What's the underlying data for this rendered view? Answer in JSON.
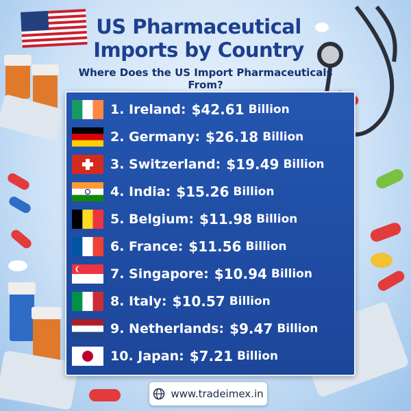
{
  "header": {
    "title": [
      "US Pharmaceutical",
      "Imports by Country"
    ],
    "subtitle": "Where Does the US Import Pharmaceuticals From?"
  },
  "items": [
    {
      "label": "1. Ireland:",
      "amount": "$42.61",
      "unit": "Billion"
    },
    {
      "label": "2. Germany:",
      "amount": "$26.18",
      "unit": "Billion"
    },
    {
      "label": "3. Switzerland:",
      "amount": "$19.49",
      "unit": "Billion"
    },
    {
      "label": "4. India:",
      "amount": "$15.26",
      "unit": "Billion"
    },
    {
      "label": "5. Belgium:",
      "amount": "$11.98",
      "unit": "Billion"
    },
    {
      "label": "6. France:",
      "amount": "$11.56",
      "unit": "Billion"
    },
    {
      "label": "7. Singapore:",
      "amount": "$10.94",
      "unit": "Billion"
    },
    {
      "label": "8. Italy:",
      "amount": "$10.57",
      "unit": "Billion"
    },
    {
      "label": "9. Netherlands:",
      "amount": "$9.47",
      "unit": "Billion"
    },
    {
      "label": "10. Japan:",
      "amount": "$7.21",
      "unit": "Billion"
    }
  ],
  "footer": {
    "website": "www.tradeimex.in"
  }
}
